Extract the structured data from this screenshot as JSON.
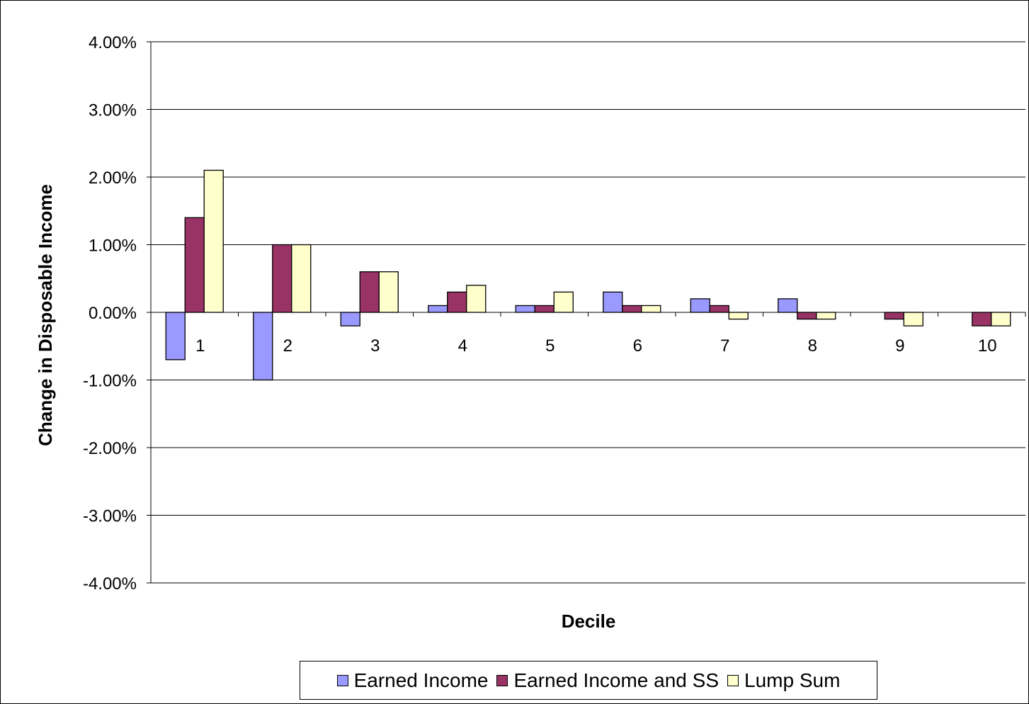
{
  "chart_data": {
    "type": "bar",
    "title": "",
    "xlabel": "Decile",
    "ylabel": "Change in Disposable Income",
    "categories": [
      "1",
      "2",
      "3",
      "4",
      "5",
      "6",
      "7",
      "8",
      "9",
      "10"
    ],
    "ylim": [
      -4.0,
      4.0
    ],
    "y_tick_labels": [
      "4.00%",
      "3.00%",
      "2.00%",
      "1.00%",
      "0.00%",
      "-1.00%",
      "-2.00%",
      "-3.00%",
      "-4.00%"
    ],
    "y_ticks": [
      4,
      3,
      2,
      1,
      0,
      -1,
      -2,
      -3,
      -4
    ],
    "grid": true,
    "legend_position": "bottom",
    "series": [
      {
        "name": "Earned Income",
        "color": "#9999ff",
        "values": [
          -0.7,
          -1.0,
          -0.2,
          0.1,
          0.1,
          0.3,
          0.2,
          0.2,
          0.0,
          0.0
        ]
      },
      {
        "name": "Earned Income and SS",
        "color": "#993366",
        "values": [
          1.4,
          1.0,
          0.6,
          0.3,
          0.1,
          0.1,
          0.1,
          -0.1,
          -0.1,
          -0.2
        ]
      },
      {
        "name": "Lump Sum",
        "color": "#ffffcc",
        "values": [
          2.1,
          1.0,
          0.6,
          0.4,
          0.3,
          0.1,
          -0.1,
          -0.1,
          -0.2,
          -0.2
        ]
      }
    ]
  }
}
